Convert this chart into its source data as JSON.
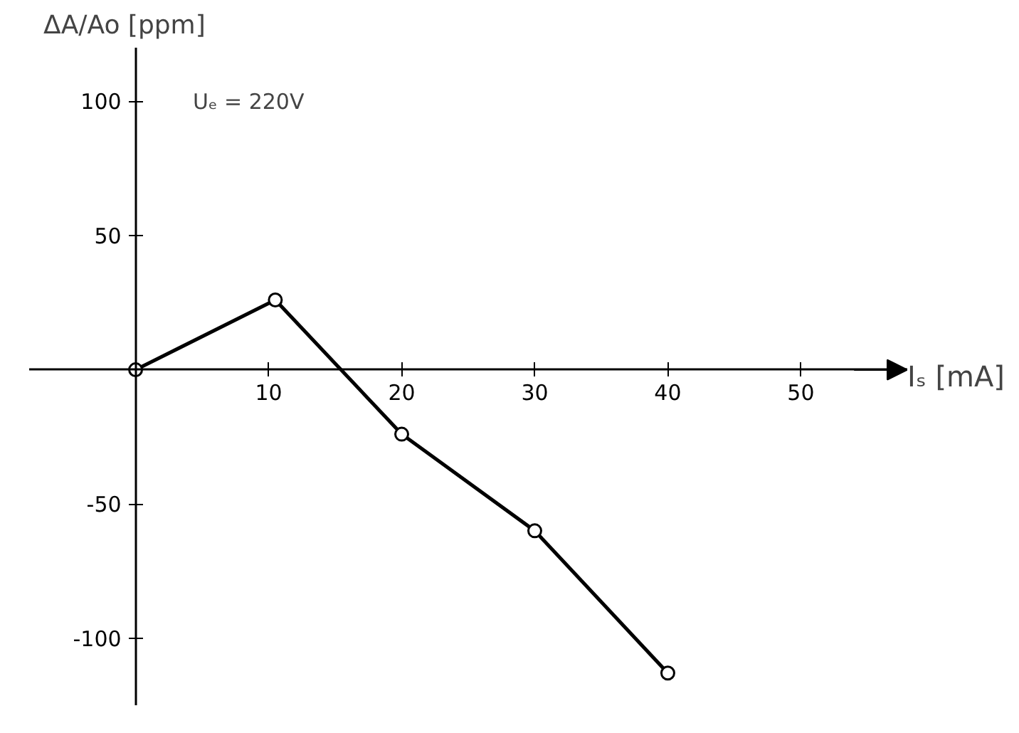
{
  "chart_data": {
    "type": "line",
    "xlabel": "Iₛ [mA]",
    "ylabel": "ΔA/Ao [ppm]",
    "annotations": [
      "Uₑ = 220V"
    ],
    "x": [
      0,
      10.5,
      20,
      30,
      40
    ],
    "series": [
      {
        "color": "#000000",
        "values": [
          0,
          26,
          -24,
          -60,
          -113
        ]
      }
    ],
    "xlim": [
      -8,
      58
    ],
    "ylim": [
      -125,
      120
    ],
    "xticks": [
      10,
      20,
      30,
      40,
      50
    ],
    "yticks": [
      -100,
      -50,
      50,
      100
    ],
    "marker": "circle",
    "line_style": "solid",
    "grid": false
  }
}
